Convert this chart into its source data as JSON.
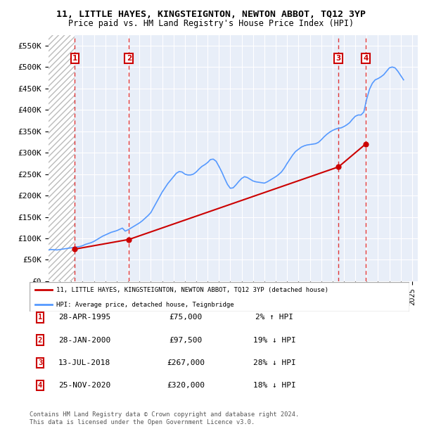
{
  "title": "11, LITTLE HAYES, KINGSTEIGNTON, NEWTON ABBOT, TQ12 3YP",
  "subtitle": "Price paid vs. HM Land Registry's House Price Index (HPI)",
  "ylim": [
    0,
    575000
  ],
  "yticks": [
    0,
    50000,
    100000,
    150000,
    200000,
    250000,
    300000,
    350000,
    400000,
    450000,
    500000,
    550000
  ],
  "ytick_labels": [
    "£0",
    "£50K",
    "£100K",
    "£150K",
    "£200K",
    "£250K",
    "£300K",
    "£350K",
    "£400K",
    "£450K",
    "£500K",
    "£550K"
  ],
  "xlim_start": 1993.0,
  "xlim_end": 2025.5,
  "plot_bg_color": "#e8eef8",
  "grid_color": "#ffffff",
  "transactions": [
    {
      "num": 1,
      "date": "28-APR-1995",
      "price": 75000,
      "year": 1995.32,
      "hpi_pct": "2% ↑ HPI"
    },
    {
      "num": 2,
      "date": "28-JAN-2000",
      "price": 97500,
      "year": 2000.08,
      "hpi_pct": "19% ↓ HPI"
    },
    {
      "num": 3,
      "date": "13-JUL-2018",
      "price": 267000,
      "year": 2018.53,
      "hpi_pct": "28% ↓ HPI"
    },
    {
      "num": 4,
      "date": "25-NOV-2020",
      "price": 320000,
      "year": 2020.9,
      "hpi_pct": "18% ↓ HPI"
    }
  ],
  "hpi_line_color": "#5599ff",
  "price_line_color": "#cc0000",
  "marker_color": "#cc0000",
  "legend_label_price": "11, LITTLE HAYES, KINGSTEIGNTON, NEWTON ABBOT, TQ12 3YP (detached house)",
  "legend_label_hpi": "HPI: Average price, detached house, Teignbridge",
  "footer": "Contains HM Land Registry data © Crown copyright and database right 2024.\nThis data is licensed under the Open Government Licence v3.0.",
  "hpi_data_years": [
    1993.0,
    1993.25,
    1993.5,
    1993.75,
    1994.0,
    1994.25,
    1994.5,
    1994.75,
    1995.0,
    1995.25,
    1995.5,
    1995.75,
    1996.0,
    1996.25,
    1996.5,
    1996.75,
    1997.0,
    1997.25,
    1997.5,
    1997.75,
    1998.0,
    1998.25,
    1998.5,
    1998.75,
    1999.0,
    1999.25,
    1999.5,
    1999.75,
    2000.0,
    2000.25,
    2000.5,
    2000.75,
    2001.0,
    2001.25,
    2001.5,
    2001.75,
    2002.0,
    2002.25,
    2002.5,
    2002.75,
    2003.0,
    2003.25,
    2003.5,
    2003.75,
    2004.0,
    2004.25,
    2004.5,
    2004.75,
    2005.0,
    2005.25,
    2005.5,
    2005.75,
    2006.0,
    2006.25,
    2006.5,
    2006.75,
    2007.0,
    2007.25,
    2007.5,
    2007.75,
    2008.0,
    2008.25,
    2008.5,
    2008.75,
    2009.0,
    2009.25,
    2009.5,
    2009.75,
    2010.0,
    2010.25,
    2010.5,
    2010.75,
    2011.0,
    2011.25,
    2011.5,
    2011.75,
    2012.0,
    2012.25,
    2012.5,
    2012.75,
    2013.0,
    2013.25,
    2013.5,
    2013.75,
    2014.0,
    2014.25,
    2014.5,
    2014.75,
    2015.0,
    2015.25,
    2015.5,
    2015.75,
    2016.0,
    2016.25,
    2016.5,
    2016.75,
    2017.0,
    2017.25,
    2017.5,
    2017.75,
    2018.0,
    2018.25,
    2018.5,
    2018.75,
    2019.0,
    2019.25,
    2019.5,
    2019.75,
    2020.0,
    2020.25,
    2020.5,
    2020.75,
    2021.0,
    2021.25,
    2021.5,
    2021.75,
    2022.0,
    2022.25,
    2022.5,
    2022.75,
    2023.0,
    2023.25,
    2023.5,
    2023.75,
    2024.0,
    2024.25
  ],
  "hpi_data_values": [
    73000,
    74000,
    73500,
    73000,
    74000,
    75000,
    76000,
    77000,
    78000,
    79000,
    80000,
    81000,
    83000,
    86000,
    88000,
    90000,
    93000,
    97000,
    101000,
    105000,
    108000,
    111000,
    114000,
    116000,
    118000,
    121000,
    124000,
    117000,
    120000,
    124000,
    128000,
    132000,
    136000,
    141000,
    147000,
    153000,
    160000,
    172000,
    184000,
    196000,
    208000,
    218000,
    228000,
    236000,
    244000,
    252000,
    256000,
    255000,
    250000,
    248000,
    248000,
    250000,
    255000,
    262000,
    268000,
    272000,
    277000,
    284000,
    285000,
    280000,
    268000,
    255000,
    240000,
    226000,
    217000,
    218000,
    225000,
    233000,
    240000,
    244000,
    242000,
    238000,
    234000,
    232000,
    231000,
    230000,
    229000,
    232000,
    236000,
    240000,
    244000,
    249000,
    255000,
    264000,
    275000,
    285000,
    295000,
    303000,
    308000,
    313000,
    316000,
    318000,
    319000,
    320000,
    321000,
    324000,
    330000,
    337000,
    343000,
    348000,
    352000,
    355000,
    357000,
    358000,
    361000,
    365000,
    370000,
    378000,
    385000,
    388000,
    388000,
    395000,
    425000,
    448000,
    462000,
    470000,
    473000,
    477000,
    482000,
    490000,
    498000,
    500000,
    498000,
    490000,
    480000,
    470000
  ]
}
